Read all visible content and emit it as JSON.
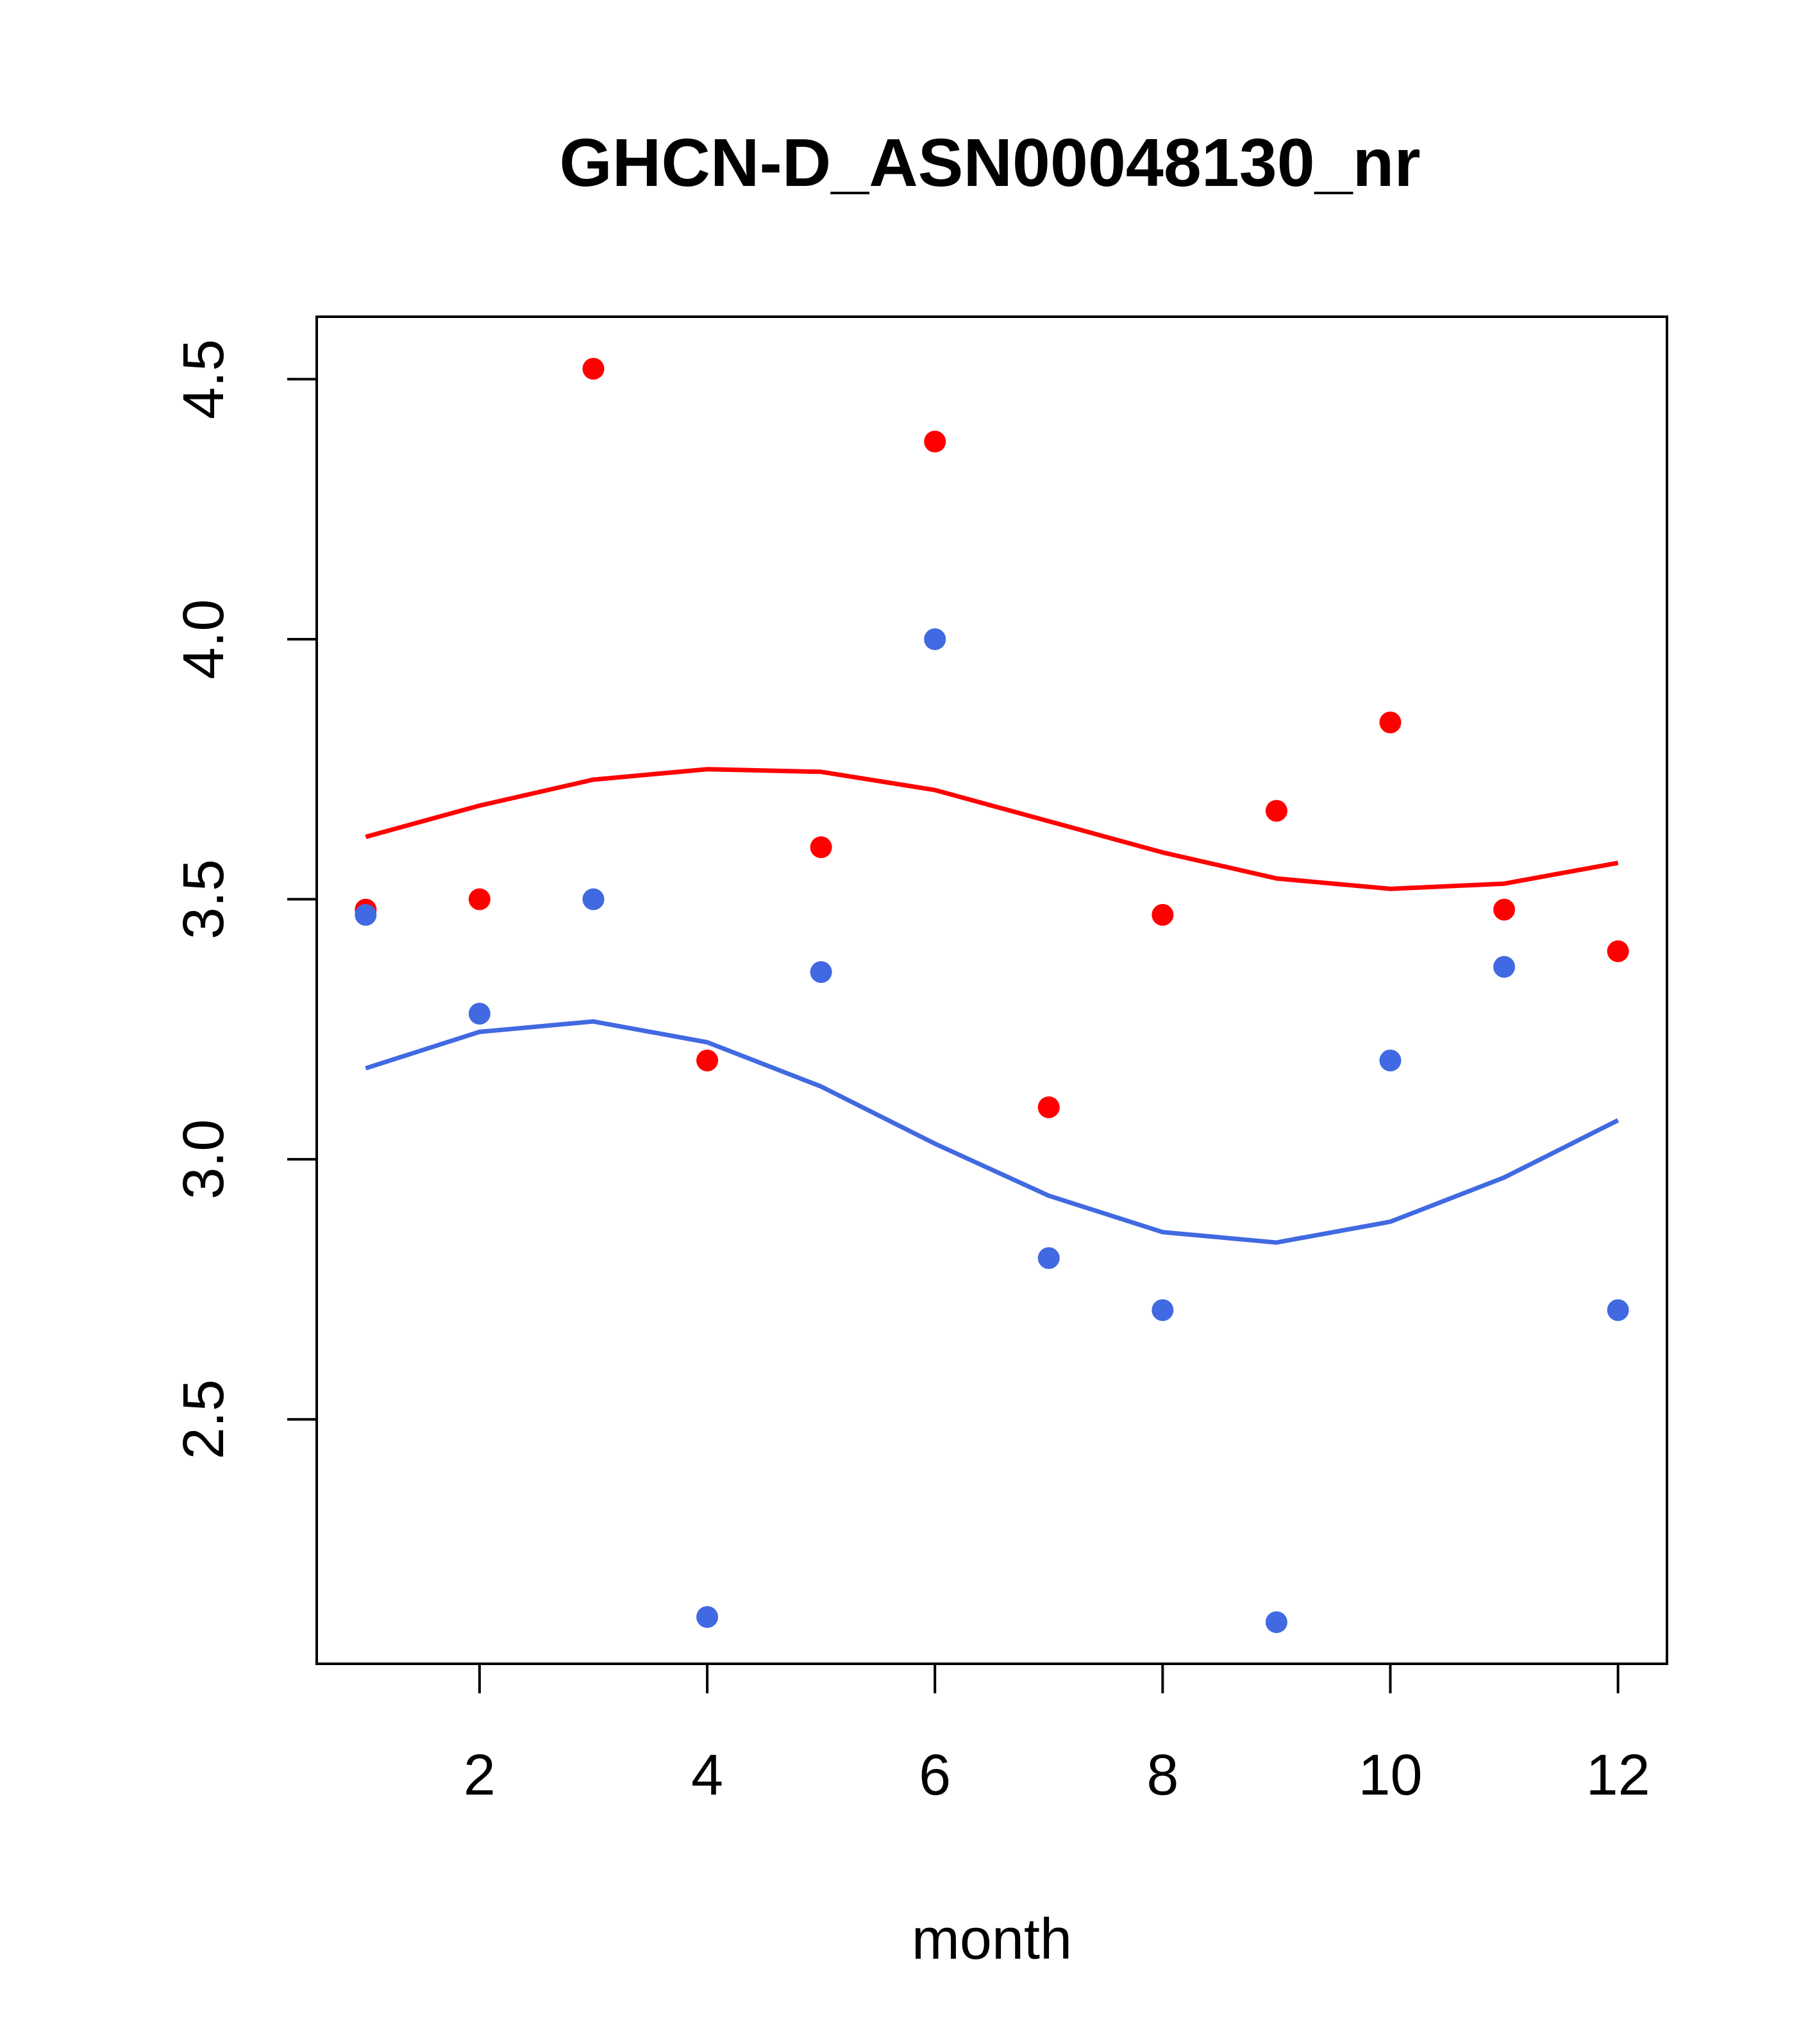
{
  "chart_data": {
    "type": "scatter",
    "title": "GHCN-D_ASN00048130_nr",
    "xlabel": "month",
    "ylabel": "",
    "xlim": [
      0.57,
      12.43
    ],
    "ylim": [
      2.03,
      4.62
    ],
    "x_ticks": [
      2,
      4,
      6,
      8,
      10,
      12
    ],
    "y_ticks": [
      2.5,
      3.0,
      3.5,
      4.0,
      4.5
    ],
    "x_tick_labels": [
      "2",
      "4",
      "6",
      "8",
      "10",
      "12"
    ],
    "y_tick_labels": [
      "2.5",
      "3.0",
      "3.5",
      "4.0",
      "4.5"
    ],
    "grid": false,
    "legend": "none",
    "series": [
      {
        "color": "#ff0000",
        "kind": "points",
        "x": [
          1,
          2,
          3,
          4,
          5,
          6,
          7,
          8,
          9,
          10,
          11,
          12
        ],
        "y": [
          3.48,
          3.5,
          4.52,
          3.19,
          3.6,
          4.38,
          3.1,
          3.47,
          3.67,
          3.84,
          3.48,
          3.4
        ]
      },
      {
        "color": "#4169e1",
        "kind": "points",
        "x": [
          1,
          2,
          3,
          4,
          5,
          6,
          7,
          8,
          9,
          10,
          11,
          12
        ],
        "y": [
          3.47,
          3.28,
          3.5,
          2.12,
          3.36,
          4.0,
          2.81,
          2.71,
          2.11,
          3.19,
          3.37,
          2.71
        ]
      },
      {
        "color": "#ff0000",
        "kind": "line",
        "x": [
          1,
          2,
          3,
          4,
          5,
          6,
          7,
          8,
          9,
          10,
          11,
          12
        ],
        "y": [
          3.62,
          3.68,
          3.73,
          3.75,
          3.745,
          3.71,
          3.65,
          3.59,
          3.54,
          3.52,
          3.53,
          3.57
        ]
      },
      {
        "color": "#4169e1",
        "kind": "line",
        "x": [
          1,
          2,
          3,
          4,
          5,
          6,
          7,
          8,
          9,
          10,
          11,
          12
        ],
        "y": [
          3.175,
          3.245,
          3.265,
          3.225,
          3.14,
          3.03,
          2.93,
          2.86,
          2.84,
          2.88,
          2.965,
          3.075
        ]
      }
    ]
  }
}
